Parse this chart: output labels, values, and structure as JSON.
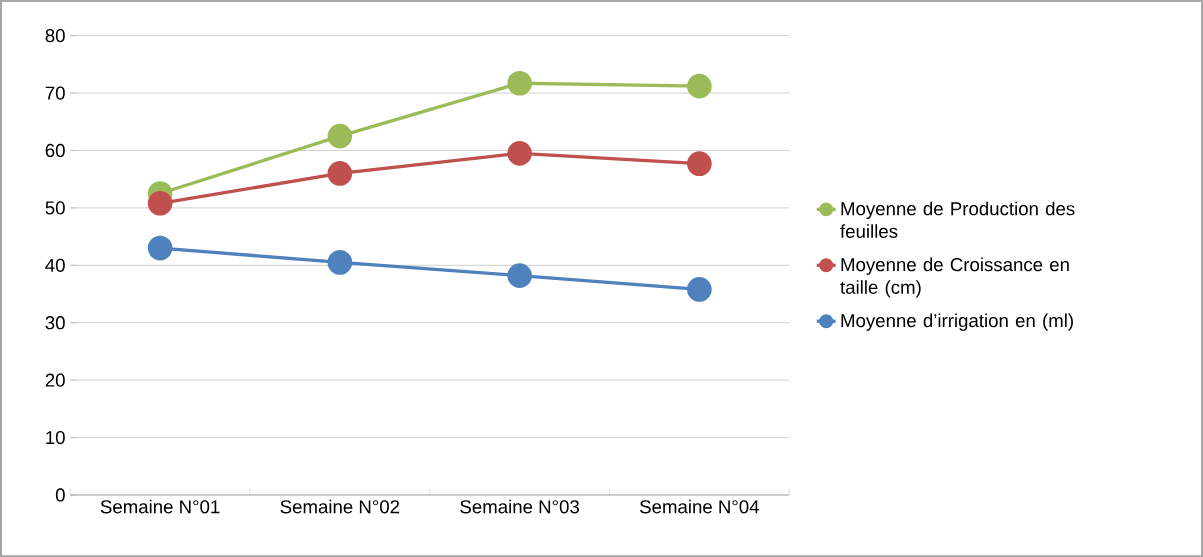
{
  "chart_data": {
    "type": "line",
    "categories": [
      "Semaine N°01",
      "Semaine N°02",
      "Semaine N°03",
      "Semaine N°04"
    ],
    "series": [
      {
        "name": "Moyenne de Production des feuilles",
        "color": "#9bbb59",
        "values": [
          52.5,
          62.5,
          71.7,
          71.2
        ]
      },
      {
        "name": "Moyenne de Croissance en taille (cm)",
        "color": "#c0504d",
        "values": [
          50.8,
          56.0,
          59.5,
          57.7
        ]
      },
      {
        "name": "Moyenne d’irrigation en (ml)",
        "color": "#4f81bd",
        "values": [
          43.0,
          40.5,
          38.2,
          35.8
        ]
      }
    ],
    "ylim": [
      0,
      80
    ],
    "yticks": [
      0,
      10,
      20,
      30,
      40,
      50,
      60,
      70,
      80
    ],
    "grid": "y",
    "legend": "right",
    "marker": "circle",
    "line_style": "solid"
  }
}
